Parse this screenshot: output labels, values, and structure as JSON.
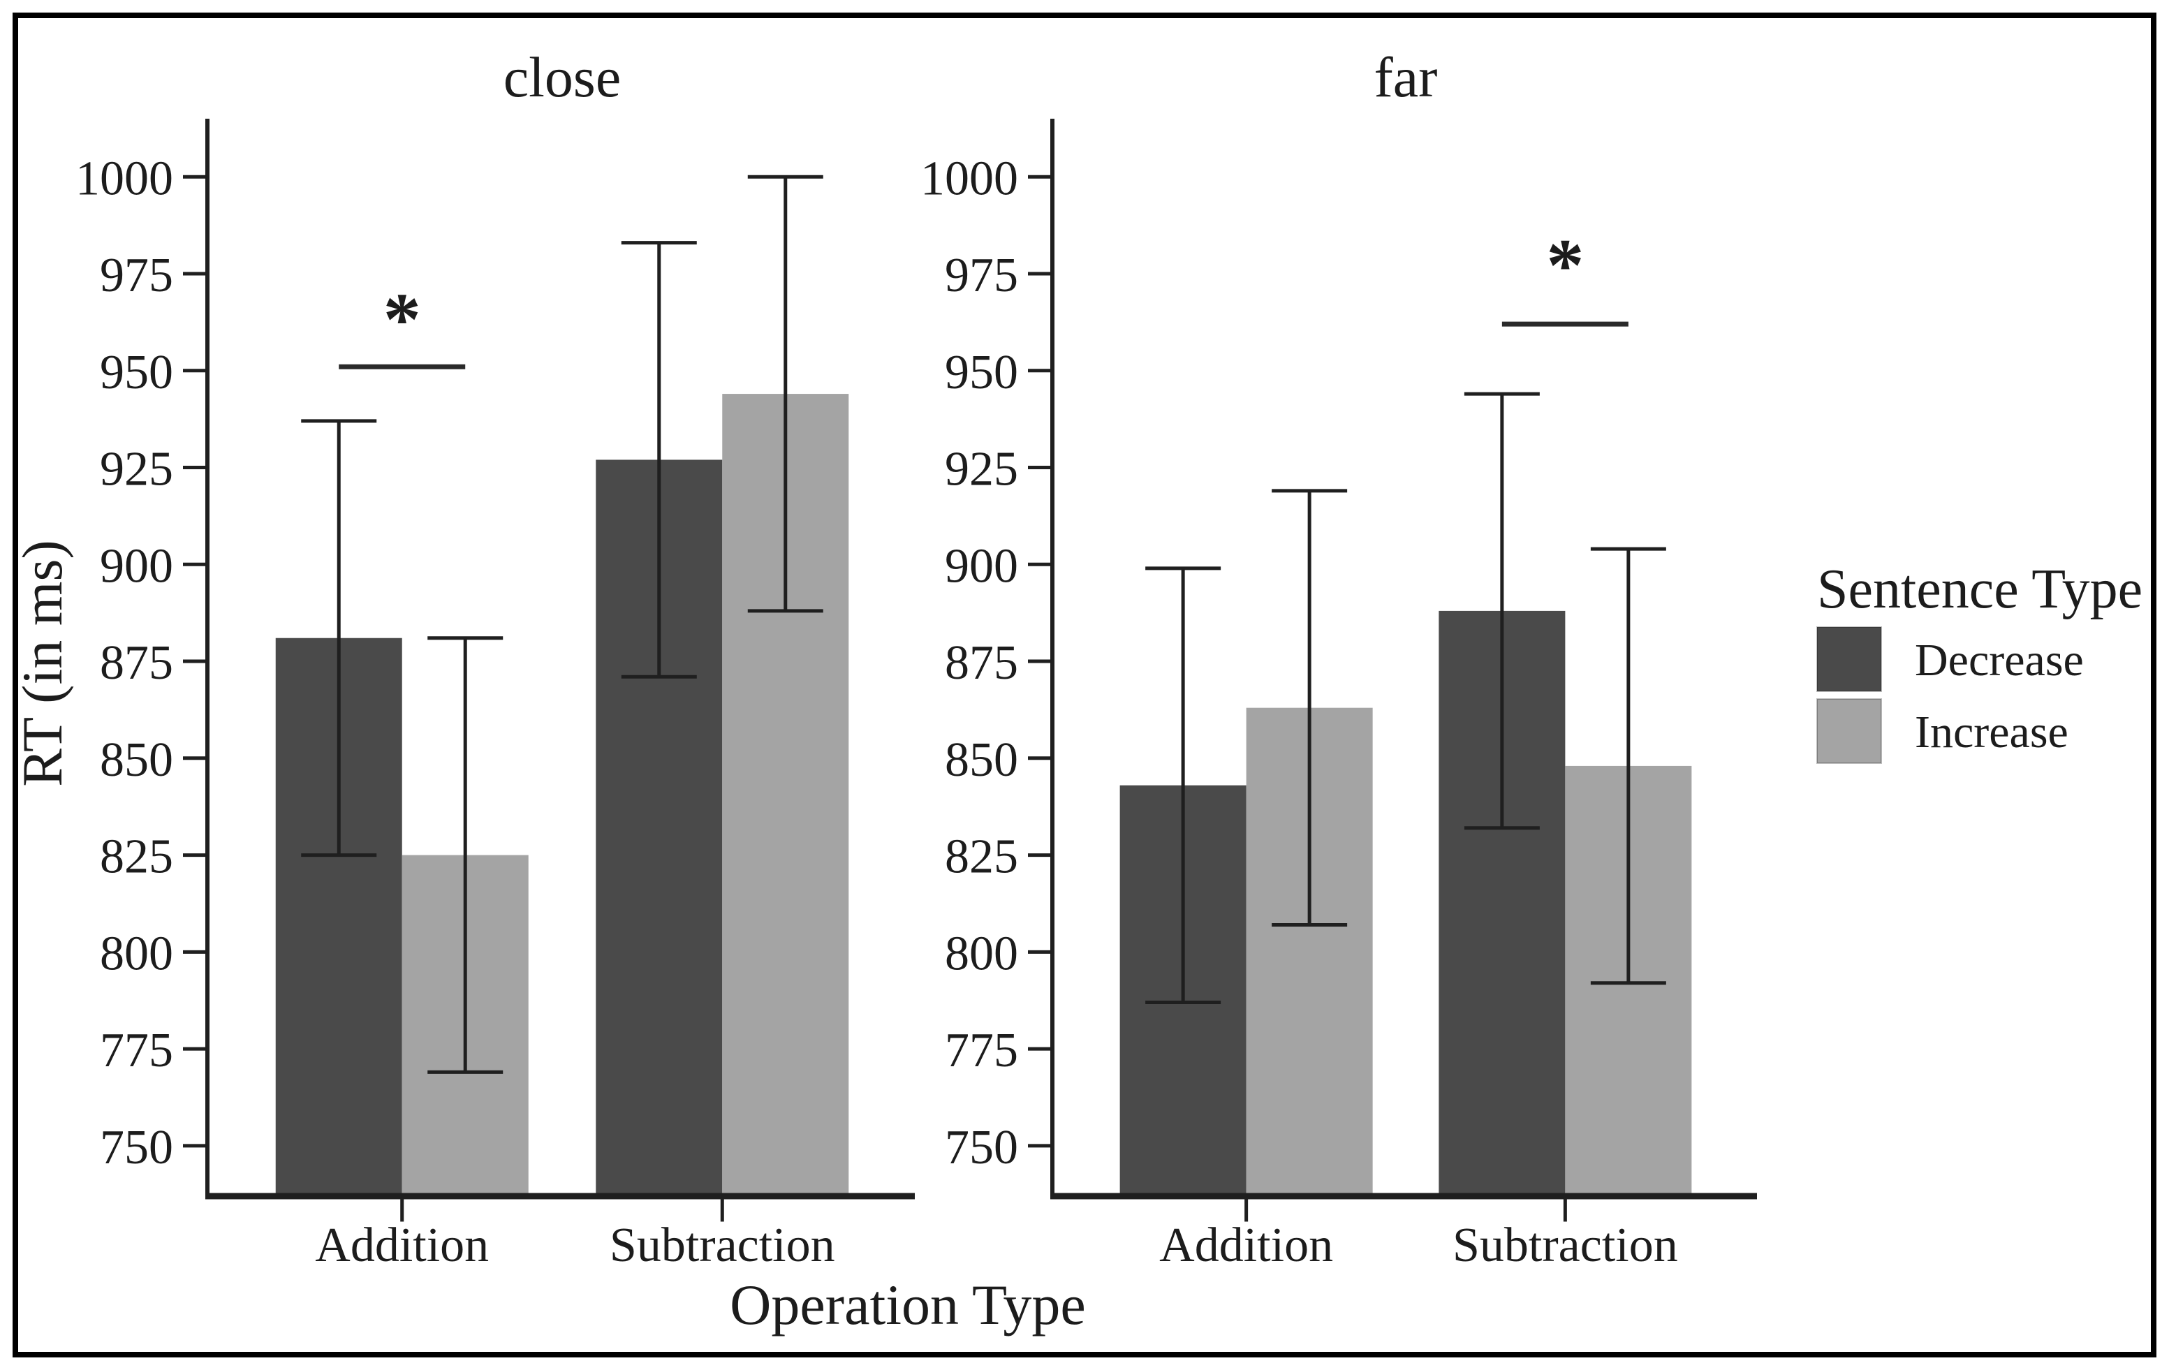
{
  "figure": {
    "background": "#ffffff",
    "border_color": "#000000"
  },
  "chart_data": {
    "type": "bar",
    "title": "",
    "xlabel": "Operation Type",
    "ylabel": "RT (in ms)",
    "ylim": [
      737,
      1015
    ],
    "y_ticks": [
      750,
      775,
      800,
      825,
      850,
      875,
      900,
      925,
      950,
      975,
      1000
    ],
    "grid": false,
    "categories": [
      "Addition",
      "Subtraction"
    ],
    "legend": {
      "title": "Sentence Type",
      "position": "right",
      "entries": [
        {
          "label": "Decrease",
          "color": "#4a4a4a"
        },
        {
          "label": "Increase",
          "color": "#a4a4a4"
        }
      ]
    },
    "axis_color": "#1f1f1f",
    "panels": [
      {
        "title": "close",
        "bars": [
          {
            "category": "Addition",
            "series": "Decrease",
            "mean": 881,
            "err_low": 825,
            "err_high": 937
          },
          {
            "category": "Addition",
            "series": "Increase",
            "mean": 825,
            "err_low": 769,
            "err_high": 881
          },
          {
            "category": "Subtraction",
            "series": "Decrease",
            "mean": 927,
            "err_low": 871,
            "err_high": 983
          },
          {
            "category": "Subtraction",
            "series": "Increase",
            "mean": 944,
            "err_low": 888,
            "err_high": 1000
          }
        ],
        "significance": {
          "category": "Addition",
          "label": "*",
          "line_value": 951,
          "star_value": 965
        }
      },
      {
        "title": "far",
        "bars": [
          {
            "category": "Addition",
            "series": "Decrease",
            "mean": 843,
            "err_low": 787,
            "err_high": 899
          },
          {
            "category": "Addition",
            "series": "Increase",
            "mean": 863,
            "err_low": 807,
            "err_high": 919
          },
          {
            "category": "Subtraction",
            "series": "Decrease",
            "mean": 888,
            "err_low": 832,
            "err_high": 944
          },
          {
            "category": "Subtraction",
            "series": "Increase",
            "mean": 848,
            "err_low": 792,
            "err_high": 904
          }
        ],
        "significance": {
          "category": "Subtraction",
          "label": "*",
          "line_value": 962,
          "star_value": 979
        }
      }
    ]
  }
}
